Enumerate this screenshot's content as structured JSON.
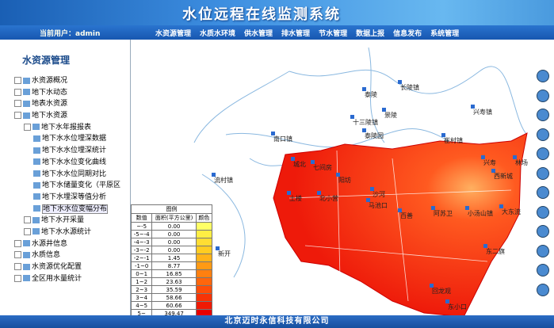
{
  "header": {
    "title": "水位远程在线监测系统",
    "user": "当前用户：admin",
    "nav": [
      "水资源管理",
      "水质水环境",
      "供水管理",
      "排水管理",
      "节水管理",
      "数据上报",
      "信息发布",
      "系统管理"
    ]
  },
  "sidebar": {
    "title": "水资源管理",
    "tree": [
      {
        "label": "水资源概况"
      },
      {
        "label": "地下水动态"
      },
      {
        "label": "地表水资源"
      },
      {
        "label": "地下水资源",
        "children": [
          {
            "label": "地下水年报报表",
            "children": [
              {
                "label": "地下水水位埋深数据"
              },
              {
                "label": "地下水水位埋深统计"
              },
              {
                "label": "地下水水位变化曲线"
              },
              {
                "label": "地下水水位同期对比"
              },
              {
                "label": "地下水储量变化（平原区"
              },
              {
                "label": "地下水埋深等值分析"
              },
              {
                "label": "地下水水位变幅分布"
              }
            ]
          },
          {
            "label": "地下水开采量"
          },
          {
            "label": "地下水水源统计"
          }
        ]
      },
      {
        "label": "水源井信息"
      },
      {
        "label": "水质信息"
      },
      {
        "label": "水资源优化配置"
      },
      {
        "label": "全区用水量统计"
      }
    ]
  },
  "map": {
    "labels": [
      "长陵镇",
      "泰陵",
      "景陵",
      "十三陵镇",
      "泰陵园",
      "南口镇",
      "兴寿镇",
      "崔村镇",
      "流村镇",
      "城北",
      "七间房",
      "阳坊",
      "土楼",
      "北小营",
      "马池口",
      "沙河",
      "百善",
      "阿苏卫",
      "小汤山镇",
      "大东流",
      "西新城",
      "兴寿",
      "林场",
      "东二旗",
      "回龙观",
      "东小口",
      "新开"
    ]
  },
  "legend": {
    "title": "图例",
    "headers": [
      "数值",
      "面积(平方公里)",
      "颜色"
    ],
    "rows": [
      {
        "range": "~-5",
        "area": "0.00",
        "color": "#ffff66"
      },
      {
        "range": "-5~-4",
        "area": "0.00",
        "color": "#ffee44"
      },
      {
        "range": "-4~-3",
        "area": "0.00",
        "color": "#ffdd33"
      },
      {
        "range": "-3~-2",
        "area": "0.00",
        "color": "#ffcc22"
      },
      {
        "range": "-2~-1",
        "area": "1.45",
        "color": "#ffb31a"
      },
      {
        "range": "-1~0",
        "area": "8.77",
        "color": "#ff9a14"
      },
      {
        "range": "0~1",
        "area": "16.85",
        "color": "#ff8010"
      },
      {
        "range": "1~2",
        "area": "23.63",
        "color": "#ff660c"
      },
      {
        "range": "2~3",
        "area": "35.59",
        "color": "#ff4d08"
      },
      {
        "range": "3~4",
        "area": "58.66",
        "color": "#f83306"
      },
      {
        "range": "4~5",
        "area": "60.66",
        "color": "#f01a04"
      },
      {
        "range": "5~",
        "area": "349.47",
        "color": "#e60000"
      }
    ]
  },
  "footer": "北京迈时永信科技有限公司"
}
